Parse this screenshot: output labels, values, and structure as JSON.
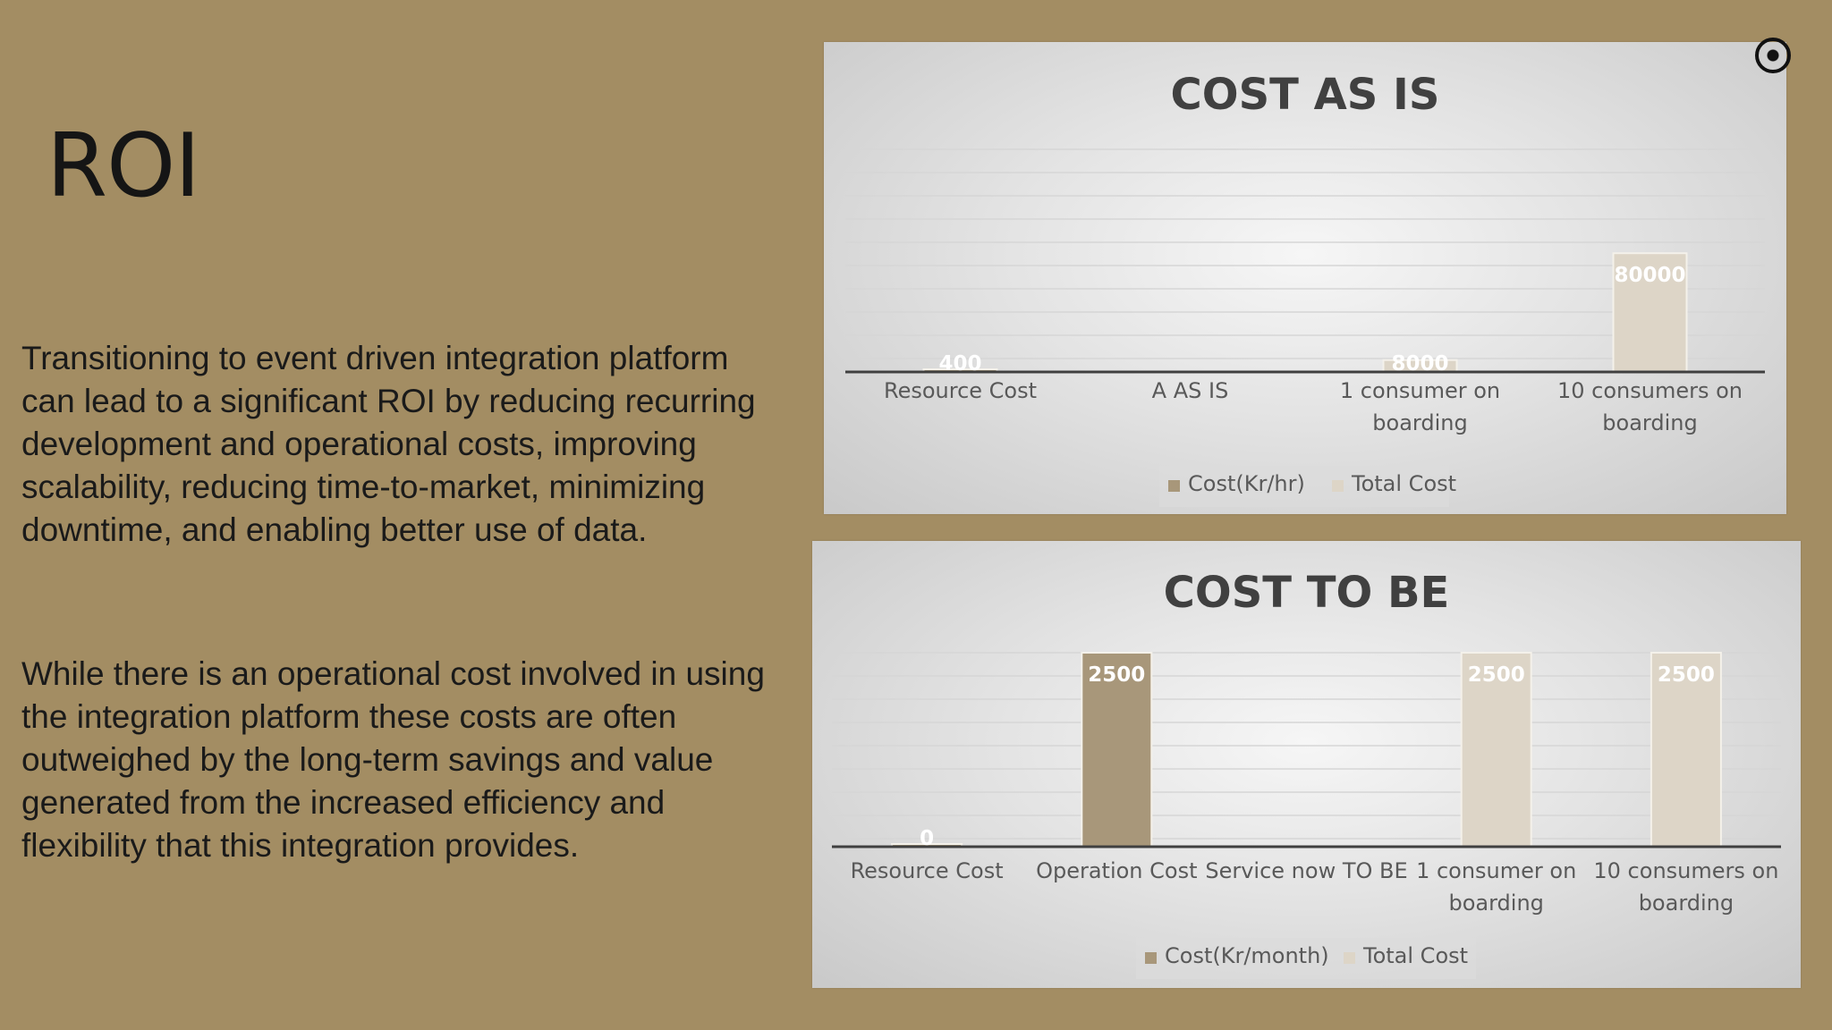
{
  "slide": {
    "title": "ROI",
    "paragraph1": "Transitioning to event driven integration platform can lead to a significant ROI by reducing recurring development and operational costs, improving scalability, reducing time-to-market, minimizing downtime, and enabling better use of data.",
    "paragraph2": "While there is an operational cost involved in using the integration platform these costs are often outweighed by the long-term savings and value generated from the increased efficiency and flexibility that this integration provides."
  },
  "colors": {
    "background": "#a38d63",
    "series1": "#a8977a",
    "series2": "#ddd5c7",
    "title_text": "#404040",
    "label_text": "#595959"
  },
  "chart_data": [
    {
      "type": "bar",
      "title": "COST AS IS",
      "categories": [
        "Resource Cost",
        "A AS IS",
        "1 consumer on boarding",
        "10 consumers on boarding"
      ],
      "series": [
        {
          "name": "Cost(Kr/hr)",
          "values": [
            400,
            null,
            null,
            null
          ]
        },
        {
          "name": "Total Cost",
          "values": [
            null,
            null,
            8000,
            80000
          ]
        }
      ],
      "data_labels": [
        "400",
        "8000",
        "80000"
      ],
      "ylim": [
        0,
        150000
      ],
      "grid": true,
      "legend": "bottom"
    },
    {
      "type": "bar",
      "title": "COST  TO BE",
      "categories": [
        "Resource Cost",
        "Operation Cost",
        "Service now TO BE",
        "1 consumer on boarding",
        "10 consumers on boarding"
      ],
      "series": [
        {
          "name": "Cost(Kr/month)",
          "values": [
            0,
            2500,
            null,
            null,
            null
          ]
        },
        {
          "name": "Total Cost",
          "values": [
            null,
            null,
            null,
            2500,
            2500
          ]
        }
      ],
      "data_labels": [
        "0",
        "2500",
        "2500",
        "2500"
      ],
      "ylim": [
        0,
        2500
      ],
      "grid": true,
      "legend": "bottom"
    }
  ]
}
